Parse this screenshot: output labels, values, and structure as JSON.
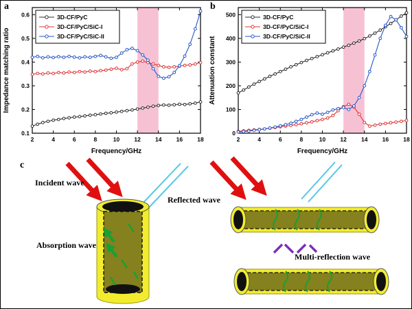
{
  "panels": {
    "a": "a",
    "b": "b",
    "c": "c"
  },
  "chart_data": [
    {
      "id": "a",
      "type": "line",
      "title": "",
      "xlabel": "Frequency/GHz",
      "ylabel": "Impedance matching ratio",
      "xlim": [
        2,
        18
      ],
      "ylim": [
        0.1,
        0.63
      ],
      "xticks": [
        2,
        4,
        6,
        8,
        10,
        12,
        14,
        16,
        18
      ],
      "yticks": [
        0.1,
        0.2,
        0.3,
        0.4,
        0.5,
        0.6
      ],
      "ytick_decimals": 1,
      "grid": false,
      "legend_position": "top-left",
      "highlight_band": {
        "x0": 12,
        "x1": 14,
        "color": "#f2a0bd",
        "opacity": 0.65
      },
      "x": [
        2,
        2.5,
        3,
        3.5,
        4,
        4.5,
        5,
        5.5,
        6,
        6.5,
        7,
        7.5,
        8,
        8.5,
        9,
        9.5,
        10,
        10.5,
        11,
        11.5,
        12,
        12.5,
        13,
        13.5,
        14,
        14.5,
        15,
        15.5,
        16,
        16.5,
        17,
        17.5,
        18
      ],
      "series": [
        {
          "name": "3D-CF/PyC",
          "color": "#2b2b2b",
          "values": [
            0.13,
            0.138,
            0.145,
            0.15,
            0.155,
            0.158,
            0.162,
            0.165,
            0.168,
            0.17,
            0.173,
            0.176,
            0.178,
            0.181,
            0.184,
            0.186,
            0.189,
            0.192,
            0.195,
            0.198,
            0.202,
            0.206,
            0.21,
            0.214,
            0.217,
            0.219,
            0.218,
            0.22,
            0.222,
            0.221,
            0.224,
            0.227,
            0.232
          ]
        },
        {
          "name": "3D-CF/PyC/SiC-I",
          "color": "#e03131",
          "values": [
            0.348,
            0.352,
            0.35,
            0.354,
            0.352,
            0.356,
            0.354,
            0.358,
            0.356,
            0.36,
            0.358,
            0.362,
            0.36,
            0.364,
            0.366,
            0.37,
            0.374,
            0.368,
            0.372,
            0.392,
            0.4,
            0.404,
            0.398,
            0.392,
            0.386,
            0.38,
            0.378,
            0.38,
            0.383,
            0.386,
            0.388,
            0.392,
            0.398
          ]
        },
        {
          "name": "3D-CF/PyC/SiC-II",
          "color": "#2456c8",
          "values": [
            0.42,
            0.424,
            0.418,
            0.422,
            0.419,
            0.423,
            0.42,
            0.424,
            0.421,
            0.418,
            0.422,
            0.42,
            0.424,
            0.428,
            0.422,
            0.416,
            0.42,
            0.438,
            0.452,
            0.458,
            0.448,
            0.43,
            0.408,
            0.372,
            0.34,
            0.332,
            0.338,
            0.356,
            0.385,
            0.425,
            0.475,
            0.54,
            0.615
          ]
        }
      ]
    },
    {
      "id": "b",
      "type": "line",
      "title": "",
      "xlabel": "Frequency/GHz",
      "ylabel": "Attenuation constant",
      "xlim": [
        2,
        18
      ],
      "ylim": [
        0,
        530
      ],
      "xticks": [
        2,
        4,
        6,
        8,
        10,
        12,
        14,
        16,
        18
      ],
      "yticks": [
        0,
        100,
        200,
        300,
        400,
        500
      ],
      "ytick_decimals": 0,
      "grid": false,
      "legend_position": "top-left",
      "highlight_band": {
        "x0": 12,
        "x1": 14,
        "color": "#f2a0bd",
        "opacity": 0.65
      },
      "x": [
        2,
        2.5,
        3,
        3.5,
        4,
        4.5,
        5,
        5.5,
        6,
        6.5,
        7,
        7.5,
        8,
        8.5,
        9,
        9.5,
        10,
        10.5,
        11,
        11.5,
        12,
        12.5,
        13,
        13.5,
        14,
        14.5,
        15,
        15.5,
        16,
        16.5,
        17,
        17.5,
        18
      ],
      "series": [
        {
          "name": "3D-CF/PyC",
          "color": "#2b2b2b",
          "values": [
            170,
            182,
            195,
            207,
            218,
            229,
            240,
            250,
            260,
            270,
            280,
            289,
            298,
            307,
            315,
            323,
            331,
            339,
            347,
            355,
            363,
            371,
            380,
            389,
            399,
            410,
            422,
            435,
            449,
            463,
            478,
            494,
            508
          ]
        },
        {
          "name": "3D-CF/PyC/SiC-I",
          "color": "#e03131",
          "values": [
            8,
            10,
            12,
            14,
            16,
            18,
            21,
            24,
            27,
            30,
            33,
            36,
            40,
            44,
            48,
            53,
            58,
            64,
            75,
            95,
            112,
            122,
            110,
            80,
            45,
            30,
            34,
            38,
            41,
            44,
            47,
            50,
            54
          ]
        },
        {
          "name": "3D-CF/PyC/SiC-II",
          "color": "#2456c8",
          "values": [
            5,
            7,
            9,
            12,
            15,
            18,
            22,
            26,
            31,
            36,
            42,
            50,
            58,
            68,
            78,
            85,
            80,
            88,
            98,
            104,
            108,
            100,
            115,
            150,
            200,
            260,
            330,
            400,
            455,
            492,
            478,
            445,
            408
          ]
        }
      ]
    }
  ],
  "diagram": {
    "labels": {
      "incident": "Incident wave",
      "reflected": "Reflected wave",
      "absorption": "Absorption wave",
      "multi_reflection": "Multi-reflection wave"
    },
    "colors": {
      "incident_arrow": "#e01010",
      "reflected_line": "#56c8e6",
      "absorption_arrow": "#17a035",
      "multi_reflection": "#7a2dbb",
      "tube_outer": "#f2ec2f",
      "tube_inner": "#84811e",
      "tube_opening": "#111111"
    }
  }
}
